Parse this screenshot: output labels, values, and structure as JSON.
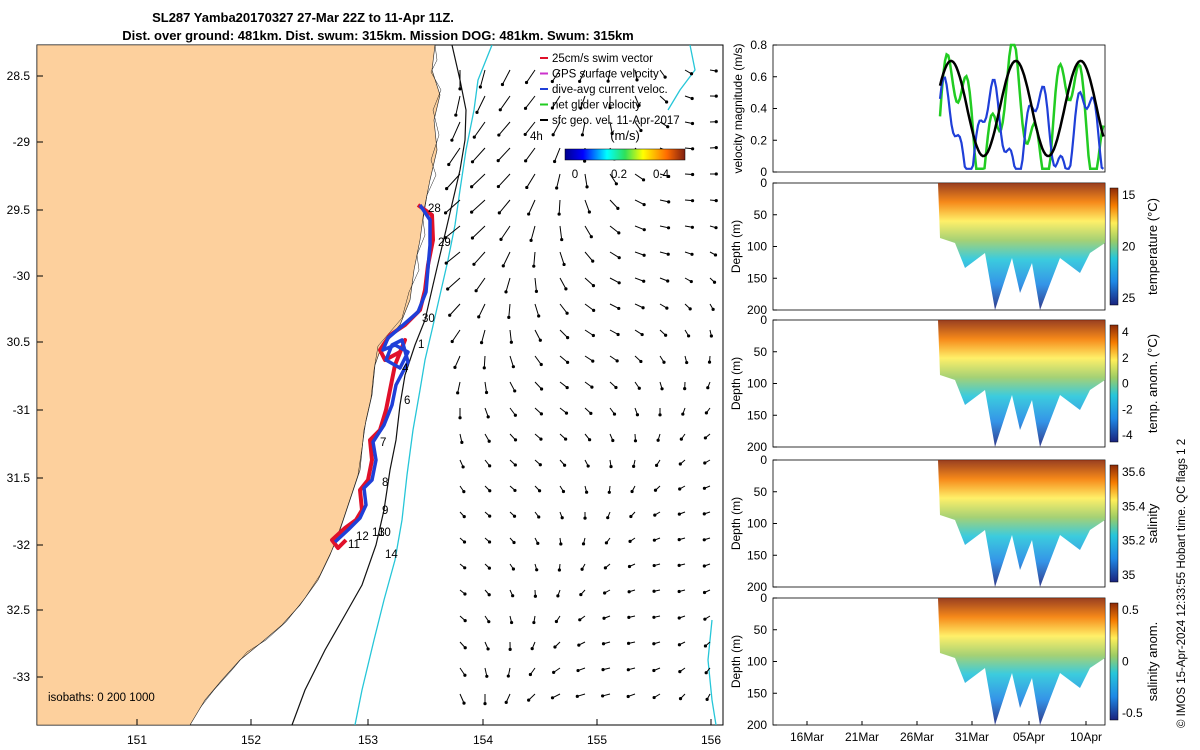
{
  "title": {
    "line1": "SL287 Yamba20170327 27-Mar 22Z to 11-Apr 11Z.",
    "line2": "Dist. over ground: 481km. Dist. swum: 315km. Mission DOG: 481km. Swum: 315km"
  },
  "map": {
    "lon_ticks": [
      "151",
      "152",
      "153",
      "154",
      "155",
      "156"
    ],
    "lat_ticks": [
      "28.5",
      "-29",
      "29.5",
      "-30",
      "30.5",
      "-31",
      "31.5",
      "-32",
      "32.5",
      "-33"
    ],
    "isobaths_label": "isobaths: 0   200  1000",
    "legend": [
      {
        "label": "25cm/s swim vector",
        "color": "#e0102a"
      },
      {
        "label": "GPS surface velocity",
        "color": "#cc33cc"
      },
      {
        "label": "dive-avg current veloc.",
        "color": "#1f3fd8"
      },
      {
        "label": "net glider velocity",
        "color": "#22cc22"
      },
      {
        "label": "sfc geo. vel. 11-Apr-2017",
        "color": "#000000"
      }
    ],
    "scale_label": "4h",
    "colorbar": {
      "label": "(m/s)",
      "ticks": [
        "0",
        "0.2",
        "0.4"
      ]
    },
    "day_labels": [
      "28",
      "29",
      "30",
      "1",
      "4",
      "6",
      "7",
      "8",
      "9",
      "10",
      "13",
      "12",
      "11",
      "14"
    ],
    "colors": {
      "land": "#fdd09d",
      "track_red": "#e0102a",
      "track_blue": "#1f3fd8",
      "isobath_200": "#111111",
      "isobath_1000": "#26c6d8"
    }
  },
  "chart_data": [
    {
      "type": "line",
      "ylabel": "velocity magnitude (m/s)",
      "ylim": [
        0,
        0.8
      ],
      "yticks": [
        "0",
        "0.2",
        "0.4",
        "0.6",
        "0.8"
      ],
      "series": []
    },
    {
      "type": "heatmap",
      "ylabel": "Depth (m)",
      "yticks": [
        "0",
        "50",
        "100",
        "150",
        "200"
      ],
      "colorbar_label": "temperature (°C)",
      "colorbar_ticks": [
        "15",
        "20",
        "25"
      ],
      "colorbar_min_label": "15"
    },
    {
      "type": "heatmap",
      "ylabel": "Depth (m)",
      "yticks": [
        "0",
        "50",
        "100",
        "150",
        "200"
      ],
      "colorbar_label": "temp. anom. (°C)",
      "colorbar_ticks": [
        "4",
        "2",
        "0",
        "-2",
        "-4"
      ]
    },
    {
      "type": "heatmap",
      "ylabel": "Depth (m)",
      "yticks": [
        "0",
        "50",
        "100",
        "150",
        "200"
      ],
      "colorbar_label": "salinity",
      "colorbar_ticks": [
        "35.6",
        "35.4",
        "35.2",
        "35"
      ]
    },
    {
      "type": "heatmap",
      "ylabel": "Depth (m)",
      "yticks": [
        "0",
        "50",
        "100",
        "150",
        "200"
      ],
      "colorbar_label": "salinity anom.",
      "colorbar_ticks": [
        "0.5",
        "0",
        "-0.5"
      ],
      "x_ticks": [
        "16Mar",
        "21Mar",
        "26Mar",
        "31Mar",
        "05Apr",
        "10Apr"
      ]
    }
  ],
  "footer": {
    "credit": "© IMOS 15-Apr-2024 12:33:55 Hobart time. QC flags 1  2"
  }
}
